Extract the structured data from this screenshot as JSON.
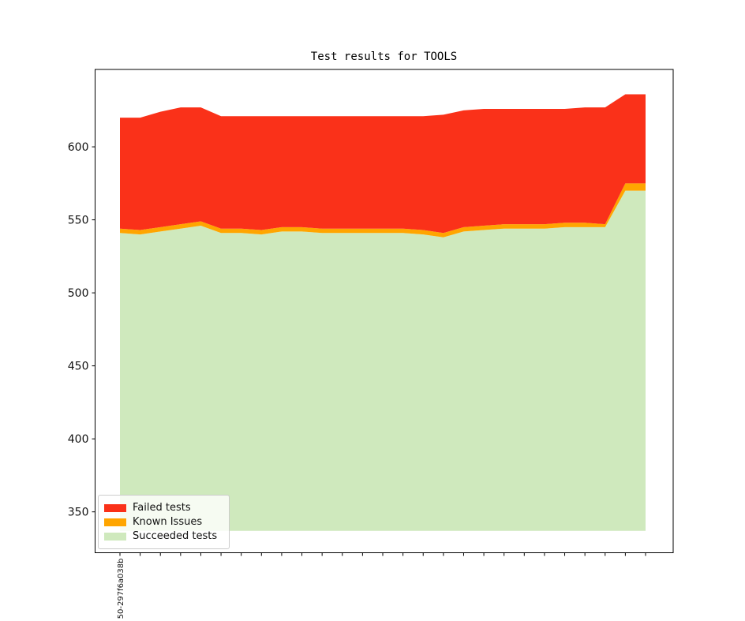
{
  "title": "Test results for TOOLS",
  "legend": {
    "position": "lower left",
    "entries": [
      {
        "label": "Failed tests",
        "color": "#fa3119"
      },
      {
        "label": "Known Issues",
        "color": "#ffa500"
      },
      {
        "label": "Succeeded tests",
        "color": "#cfe9bd"
      }
    ]
  },
  "chart_data": {
    "type": "area",
    "stacked": true,
    "title": "Test results for TOOLS",
    "xlabel": "",
    "ylabel": "",
    "x_tick_count": 27,
    "x_tick_labels": [
      "50-297f6a038b"
    ],
    "yticks": [
      350,
      400,
      450,
      500,
      550,
      600
    ],
    "ylim": [
      322,
      653
    ],
    "baseline": 337,
    "grid": false,
    "series": [
      {
        "name": "Succeeded tests",
        "color": "#cfe9bd",
        "values": [
          541,
          540,
          542,
          544,
          546,
          541,
          541,
          540,
          542,
          542,
          541,
          541,
          541,
          541,
          541,
          540,
          538,
          542,
          543,
          544,
          544,
          544,
          545,
          545,
          545,
          570,
          570
        ]
      },
      {
        "name": "Known Issues",
        "color": "#ffa500",
        "values": [
          3,
          3,
          3,
          3,
          3,
          3,
          3,
          3,
          3,
          3,
          3,
          3,
          3,
          3,
          3,
          3,
          3,
          3,
          3,
          3,
          3,
          3,
          3,
          3,
          2,
          5,
          5
        ]
      },
      {
        "name": "Failed tests",
        "color": "#fa3119",
        "values": [
          76,
          77,
          79,
          80,
          78,
          77,
          77,
          78,
          76,
          76,
          77,
          77,
          77,
          77,
          77,
          78,
          81,
          80,
          80,
          79,
          79,
          79,
          78,
          79,
          80,
          61,
          61
        ]
      }
    ],
    "totals": [
      620,
      620,
      624,
      627,
      627,
      621,
      621,
      621,
      621,
      621,
      621,
      621,
      621,
      621,
      621,
      621,
      622,
      625,
      626,
      626,
      626,
      626,
      626,
      627,
      627,
      636,
      636
    ]
  }
}
